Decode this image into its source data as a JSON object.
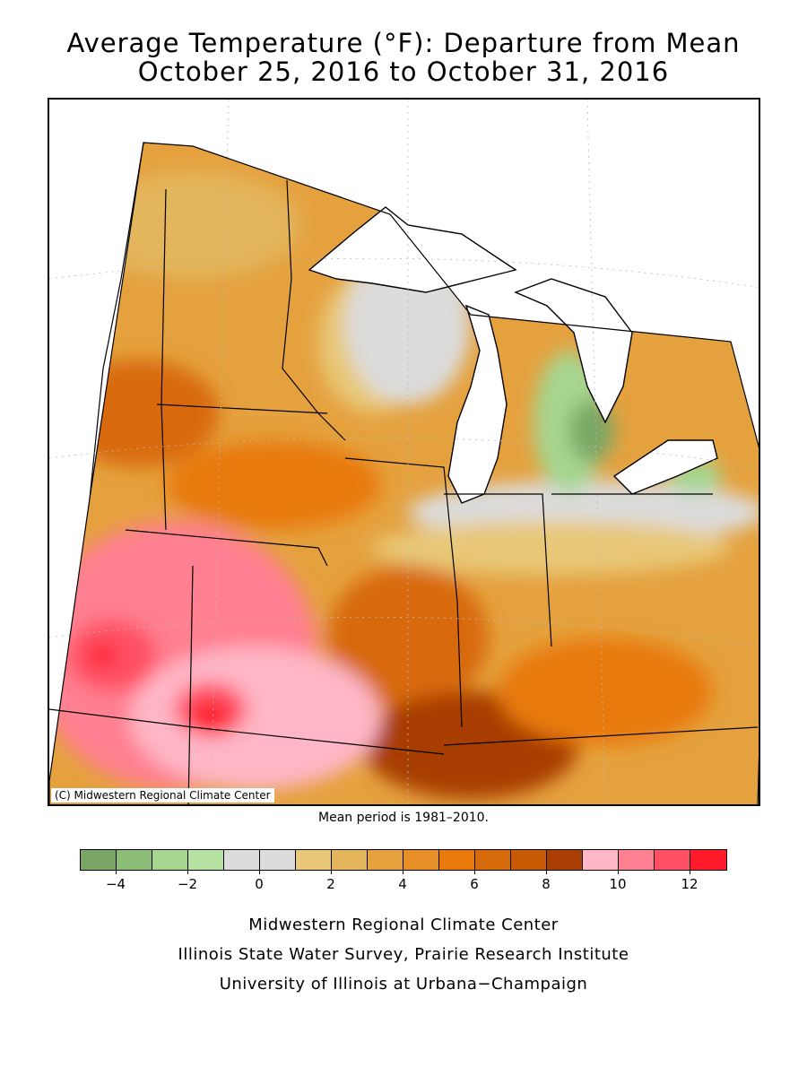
{
  "title_line1": "Average Temperature (°F): Departure from Mean",
  "title_line2": "October 25, 2016 to October 31, 2016",
  "copyright": "(C) Midwestern Regional Climate Center",
  "mean_period": "Mean period is 1981–2010.",
  "legend": {
    "colors": [
      "#7aa765",
      "#8cbd77",
      "#a6d58f",
      "#b5e2a3",
      "#dcdcdc",
      "#dcdcdc",
      "#e8c878",
      "#e3b55c",
      "#e5a13e",
      "#e78f27",
      "#e87a0b",
      "#d86b09",
      "#c85a05",
      "#a83e03",
      "#ffb6c6",
      "#ff8090",
      "#ff4f63",
      "#ff1b29"
    ],
    "tick_labels": [
      "−4",
      "−2",
      "0",
      "2",
      "4",
      "6",
      "8",
      "10",
      "12"
    ]
  },
  "credits": {
    "line1": "Midwestern Regional Climate Center",
    "line2": "Illinois State Water Survey, Prairie Research Institute",
    "line3": "University of Illinois at Urbana−Champaign"
  }
}
